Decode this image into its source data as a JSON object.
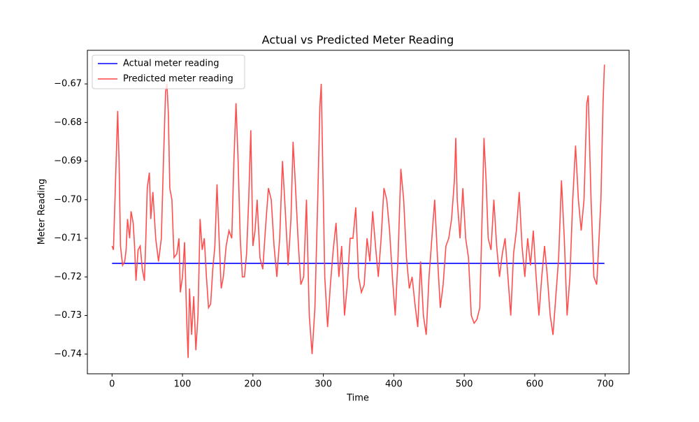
{
  "chart_data": {
    "type": "line",
    "title": "Actual vs Predicted Meter Reading",
    "x_label": "Time",
    "y_label": "Meter Reading",
    "xlim": [
      -35,
      734
    ],
    "ylim": [
      -0.7451,
      -0.6613
    ],
    "xticks": [
      0,
      100,
      200,
      300,
      400,
      500,
      600,
      700
    ],
    "yticks": [
      {
        "value": -0.74,
        "label": "−0.74"
      },
      {
        "value": -0.73,
        "label": "−0.73"
      },
      {
        "value": -0.72,
        "label": "−0.72"
      },
      {
        "value": -0.71,
        "label": "−0.71"
      },
      {
        "value": -0.7,
        "label": "−0.70"
      },
      {
        "value": -0.69,
        "label": "−0.69"
      },
      {
        "value": -0.68,
        "label": "−0.68"
      },
      {
        "value": -0.67,
        "label": "−0.67"
      }
    ],
    "legend": "upper left",
    "series": [
      {
        "name": "Actual meter reading",
        "color": "#0000ff",
        "x": [
          0,
          699
        ],
        "values": [
          -0.7165,
          -0.7165
        ]
      },
      {
        "name": "Predicted meter reading",
        "color": "#ff4444",
        "x": [
          0,
          2,
          5,
          8,
          10,
          12,
          15,
          18,
          20,
          22,
          25,
          27,
          30,
          32,
          34,
          37,
          40,
          43,
          46,
          48,
          50,
          53,
          55,
          58,
          62,
          66,
          70,
          73,
          76,
          78,
          80,
          82,
          85,
          88,
          92,
          95,
          97,
          100,
          103,
          106,
          108,
          110,
          113,
          116,
          119,
          122,
          125,
          128,
          131,
          134,
          137,
          140,
          143,
          146,
          149,
          152,
          155,
          158,
          162,
          166,
          170,
          173,
          176,
          179,
          182,
          185,
          188,
          191,
          194,
          197,
          200,
          203,
          206,
          210,
          214,
          218,
          222,
          226,
          230,
          234,
          238,
          242,
          246,
          250,
          254,
          257,
          260,
          264,
          268,
          272,
          276,
          280,
          284,
          288,
          292,
          295,
          297,
          299,
          302,
          306,
          310,
          314,
          318,
          322,
          326,
          330,
          334,
          338,
          342,
          346,
          350,
          354,
          358,
          362,
          366,
          370,
          374,
          378,
          382,
          386,
          390,
          394,
          398,
          402,
          406,
          410,
          414,
          418,
          422,
          426,
          430,
          434,
          438,
          442,
          446,
          450,
          454,
          458,
          462,
          466,
          470,
          474,
          478,
          482,
          486,
          488,
          490,
          494,
          498,
          502,
          506,
          510,
          514,
          518,
          522,
          526,
          528,
          531,
          534,
          538,
          542,
          546,
          550,
          554,
          558,
          562,
          566,
          570,
          574,
          578,
          582,
          586,
          590,
          594,
          598,
          602,
          606,
          610,
          614,
          618,
          622,
          626,
          630,
          634,
          638,
          642,
          646,
          650,
          654,
          658,
          662,
          666,
          670,
          674,
          676,
          680,
          684,
          688,
          690,
          694,
          697,
          699
        ],
        "values": [
          -0.712,
          -0.713,
          -0.695,
          -0.677,
          -0.69,
          -0.712,
          -0.717,
          -0.716,
          -0.713,
          -0.705,
          -0.71,
          -0.703,
          -0.706,
          -0.712,
          -0.721,
          -0.713,
          -0.712,
          -0.718,
          -0.721,
          -0.71,
          -0.697,
          -0.693,
          -0.705,
          -0.698,
          -0.71,
          -0.716,
          -0.71,
          -0.69,
          -0.672,
          -0.67,
          -0.678,
          -0.697,
          -0.7,
          -0.715,
          -0.714,
          -0.71,
          -0.724,
          -0.72,
          -0.711,
          -0.731,
          -0.741,
          -0.723,
          -0.735,
          -0.725,
          -0.739,
          -0.73,
          -0.705,
          -0.713,
          -0.71,
          -0.72,
          -0.728,
          -0.727,
          -0.718,
          -0.712,
          -0.696,
          -0.71,
          -0.723,
          -0.72,
          -0.712,
          -0.708,
          -0.71,
          -0.69,
          -0.675,
          -0.69,
          -0.71,
          -0.72,
          -0.72,
          -0.714,
          -0.7,
          -0.682,
          -0.712,
          -0.708,
          -0.7,
          -0.715,
          -0.718,
          -0.707,
          -0.697,
          -0.7,
          -0.712,
          -0.72,
          -0.71,
          -0.69,
          -0.703,
          -0.717,
          -0.705,
          -0.685,
          -0.695,
          -0.71,
          -0.722,
          -0.72,
          -0.7,
          -0.73,
          -0.74,
          -0.728,
          -0.7,
          -0.676,
          -0.67,
          -0.69,
          -0.72,
          -0.733,
          -0.722,
          -0.713,
          -0.706,
          -0.72,
          -0.712,
          -0.73,
          -0.722,
          -0.71,
          -0.71,
          -0.702,
          -0.72,
          -0.724,
          -0.722,
          -0.71,
          -0.716,
          -0.703,
          -0.712,
          -0.72,
          -0.71,
          -0.697,
          -0.7,
          -0.708,
          -0.72,
          -0.73,
          -0.715,
          -0.692,
          -0.7,
          -0.715,
          -0.723,
          -0.72,
          -0.727,
          -0.733,
          -0.716,
          -0.73,
          -0.735,
          -0.72,
          -0.71,
          -0.7,
          -0.715,
          -0.728,
          -0.722,
          -0.712,
          -0.71,
          -0.705,
          -0.695,
          -0.684,
          -0.7,
          -0.71,
          -0.697,
          -0.71,
          -0.715,
          -0.73,
          -0.732,
          -0.731,
          -0.728,
          -0.7,
          -0.684,
          -0.695,
          -0.71,
          -0.713,
          -0.7,
          -0.712,
          -0.72,
          -0.714,
          -0.71,
          -0.72,
          -0.73,
          -0.714,
          -0.708,
          -0.698,
          -0.712,
          -0.72,
          -0.71,
          -0.717,
          -0.708,
          -0.72,
          -0.73,
          -0.72,
          -0.712,
          -0.72,
          -0.73,
          -0.735,
          -0.725,
          -0.715,
          -0.695,
          -0.71,
          -0.73,
          -0.72,
          -0.7,
          -0.686,
          -0.7,
          -0.708,
          -0.7,
          -0.675,
          -0.673,
          -0.7,
          -0.72,
          -0.722,
          -0.715,
          -0.7,
          -0.675,
          -0.665
        ]
      }
    ]
  }
}
